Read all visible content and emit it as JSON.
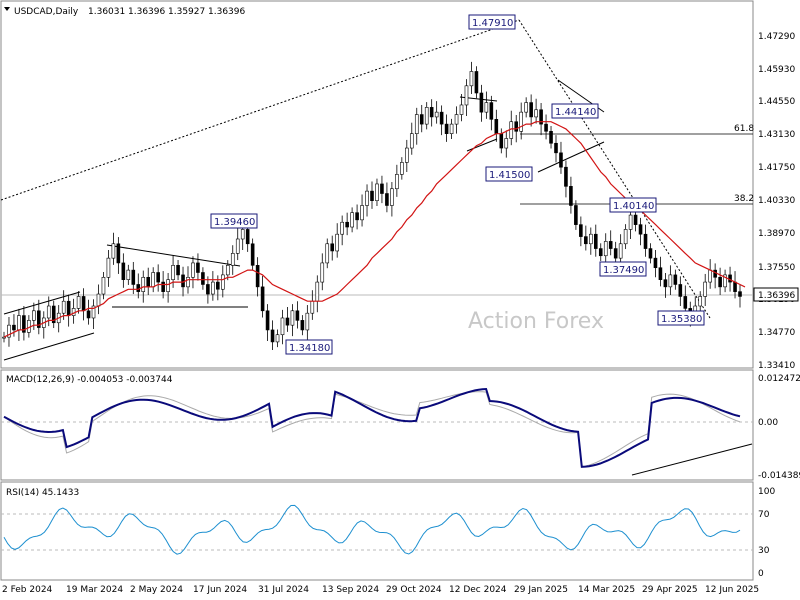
{
  "chart_data": [
    {
      "type": "candlestick",
      "title": "USDCAD,Daily",
      "ohlc": {
        "open": "1.36031",
        "high": "1.36396",
        "low": "1.35927",
        "close": "1.36396"
      },
      "watermark": "Action Forex",
      "price_axis_ticks": [
        "1.47290",
        "1.45930",
        "1.44550",
        "1.43130",
        "1.41750",
        "1.40330",
        "1.38970",
        "1.37550",
        "1.36190",
        "1.34770",
        "1.33410"
      ],
      "current_price": "1.36396",
      "date_ticks": [
        "2 Feb 2024",
        "19 Mar 2024",
        "2 May 2024",
        "17 Jun 2024",
        "31 Jul 2024",
        "13 Sep 2024",
        "29 Oct 2024",
        "12 Dec 2024",
        "29 Jan 2025",
        "14 Mar 2025",
        "29 Apr 2025",
        "12 Jun 2025"
      ],
      "annotations": [
        "1.47910",
        "1.44140",
        "1.41500",
        "1.39460",
        "1.40140",
        "1.37490",
        "1.35380",
        "1.34180"
      ],
      "fib_levels": [
        {
          "label": "61.8"
        },
        {
          "label": "38.2"
        }
      ],
      "close_series": [
        1.347,
        1.352,
        1.35,
        1.356,
        1.349,
        1.354,
        1.358,
        1.351,
        1.355,
        1.36,
        1.353,
        1.357,
        1.362,
        1.356,
        1.359,
        1.364,
        1.358,
        1.355,
        1.36,
        1.365,
        1.372,
        1.38,
        1.386,
        1.378,
        1.371,
        1.375,
        1.369,
        1.366,
        1.372,
        1.368,
        1.374,
        1.37,
        1.366,
        1.371,
        1.377,
        1.373,
        1.368,
        1.372,
        1.378,
        1.374,
        1.369,
        1.365,
        1.37,
        1.367,
        1.373,
        1.377,
        1.382,
        1.388,
        1.392,
        1.386,
        1.377,
        1.368,
        1.358,
        1.35,
        1.345,
        1.348,
        1.355,
        1.352,
        1.358,
        1.354,
        1.35,
        1.357,
        1.362,
        1.37,
        1.378,
        1.386,
        1.383,
        1.39,
        1.395,
        1.393,
        1.399,
        1.396,
        1.402,
        1.408,
        1.404,
        1.411,
        1.407,
        1.402,
        1.409,
        1.415,
        1.42,
        1.426,
        1.432,
        1.44,
        1.436,
        1.443,
        1.439,
        1.441,
        1.436,
        1.432,
        1.436,
        1.44,
        1.444,
        1.452,
        1.458,
        1.449,
        1.441,
        1.445,
        1.438,
        1.432,
        1.426,
        1.43,
        1.437,
        1.433,
        1.441,
        1.445,
        1.439,
        1.442,
        1.436,
        1.433,
        1.428,
        1.424,
        1.418,
        1.41,
        1.402,
        1.394,
        1.389,
        1.386,
        1.39,
        1.384,
        1.381,
        1.387,
        1.384,
        1.38,
        1.386,
        1.392,
        1.398,
        1.394,
        1.39,
        1.384,
        1.38,
        1.376,
        1.371,
        1.368,
        1.373,
        1.369,
        1.364,
        1.359,
        1.356,
        1.36,
        1.364,
        1.37,
        1.375,
        1.372,
        1.368,
        1.373,
        1.37,
        1.366,
        1.364
      ],
      "sma_series": [
        1.347,
        1.348,
        1.349,
        1.35,
        1.35,
        1.351,
        1.352,
        1.352,
        1.353,
        1.354,
        1.354,
        1.355,
        1.356,
        1.356,
        1.357,
        1.358,
        1.358,
        1.359,
        1.359,
        1.36,
        1.361,
        1.363,
        1.364,
        1.365,
        1.366,
        1.367,
        1.367,
        1.367,
        1.368,
        1.368,
        1.368,
        1.369,
        1.369,
        1.369,
        1.37,
        1.37,
        1.37,
        1.371,
        1.371,
        1.371,
        1.371,
        1.371,
        1.371,
        1.371,
        1.371,
        1.372,
        1.372,
        1.373,
        1.374,
        1.375,
        1.375,
        1.374,
        1.373,
        1.371,
        1.369,
        1.368,
        1.367,
        1.366,
        1.365,
        1.364,
        1.363,
        1.362,
        1.362,
        1.362,
        1.362,
        1.363,
        1.364,
        1.365,
        1.367,
        1.369,
        1.371,
        1.373,
        1.375,
        1.377,
        1.38,
        1.382,
        1.384,
        1.386,
        1.388,
        1.391,
        1.393,
        1.396,
        1.398,
        1.401,
        1.403,
        1.406,
        1.408,
        1.411,
        1.413,
        1.415,
        1.417,
        1.419,
        1.421,
        1.423,
        1.425,
        1.427,
        1.428,
        1.43,
        1.431,
        1.432,
        1.432,
        1.433,
        1.434,
        1.434,
        1.435,
        1.436,
        1.436,
        1.437,
        1.437,
        1.437,
        1.437,
        1.436,
        1.435,
        1.434,
        1.432,
        1.43,
        1.428,
        1.425,
        1.422,
        1.419,
        1.416,
        1.414,
        1.411,
        1.409,
        1.407,
        1.405,
        1.404,
        1.402,
        1.4,
        1.398,
        1.396,
        1.394,
        1.392,
        1.39,
        1.388,
        1.386,
        1.384,
        1.382,
        1.38,
        1.378,
        1.377,
        1.376,
        1.375,
        1.374,
        1.373,
        1.372,
        1.371,
        1.37,
        1.369,
        1.368
      ],
      "ylim": [
        1.3341,
        1.4795
      ]
    },
    {
      "type": "line",
      "title": "MACD(12,26,9) -0.004053 -0.003744",
      "y_ticks": [
        "0.012472",
        "0.00",
        "-0.014389"
      ],
      "ylim": [
        -0.014389,
        0.012472
      ]
    },
    {
      "type": "line",
      "title": "RSI(14) 45.1433",
      "y_ticks": [
        "100",
        "70",
        "30",
        "0"
      ],
      "ylim": [
        0,
        100
      ]
    }
  ]
}
